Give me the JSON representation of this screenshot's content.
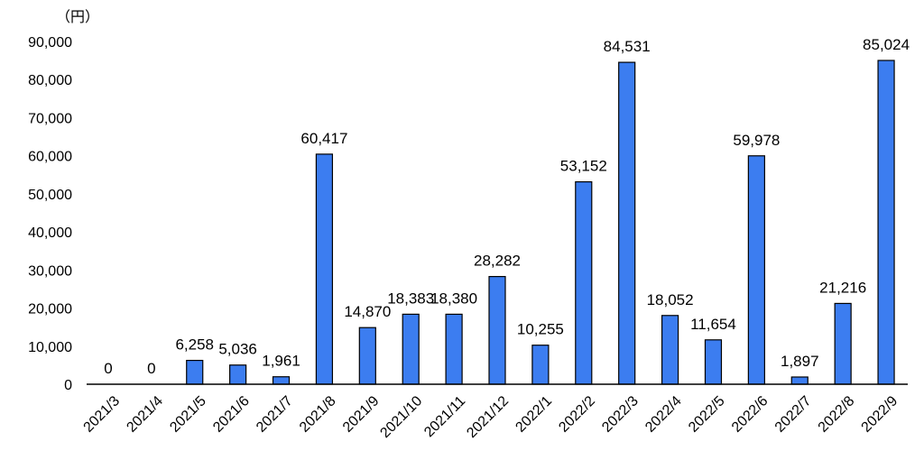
{
  "chart_data": {
    "type": "bar",
    "unit_label": "（円）",
    "categories": [
      "2021/3",
      "2021/4",
      "2021/5",
      "2021/6",
      "2021/7",
      "2021/8",
      "2021/9",
      "2021/10",
      "2021/11",
      "2021/12",
      "2022/1",
      "2022/2",
      "2022/3",
      "2022/4",
      "2022/5",
      "2022/6",
      "2022/7",
      "2022/8",
      "2022/9"
    ],
    "values": [
      0,
      0,
      6258,
      5036,
      1961,
      60417,
      14870,
      18383,
      18380,
      28282,
      10255,
      53152,
      84531,
      18052,
      11654,
      59978,
      1897,
      21216,
      85024
    ],
    "value_labels": [
      "0",
      "0",
      "6,258",
      "5,036",
      "1,961",
      "60,417",
      "14,870",
      "18,383",
      "18,380",
      "28,282",
      "10,255",
      "53,152",
      "84,531",
      "18,052",
      "11,654",
      "59,978",
      "1,897",
      "21,216",
      "85,024"
    ],
    "ylim": [
      0,
      90000
    ],
    "y_ticks": [
      0,
      10000,
      20000,
      30000,
      40000,
      50000,
      60000,
      70000,
      80000,
      90000
    ],
    "y_tick_labels": [
      "0",
      "10,000",
      "20,000",
      "30,000",
      "40,000",
      "50,000",
      "60,000",
      "70,000",
      "80,000",
      "90,000"
    ],
    "grid": false,
    "legend": "none",
    "colors": {
      "bar": "#3c7df0",
      "bar_stroke": "#000000",
      "axis": "#000000"
    }
  }
}
